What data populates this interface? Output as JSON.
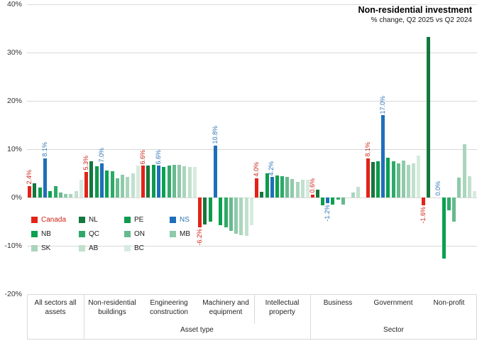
{
  "chart_data": {
    "type": "bar",
    "title": "Non-residential investment",
    "subtitle": "% change, Q2 2025 vs Q2 2024",
    "y_axis": {
      "min": -20,
      "max": 40,
      "step": 10,
      "grid": true,
      "ticks": [
        "40%",
        "30%",
        "20%",
        "10%",
        "0%",
        "-10%",
        "-20%"
      ],
      "tick_values": [
        40,
        30,
        20,
        10,
        0,
        -10,
        -20
      ]
    },
    "regions": [
      "Canada",
      "NL",
      "PE",
      "NS",
      "NB",
      "QC",
      "ON",
      "MB",
      "SK",
      "AB",
      "BC"
    ],
    "region_colors": {
      "Canada": "#e2231a",
      "NL": "#14773d",
      "PE": "#0f9a4d",
      "NS": "#1e6fba",
      "NB": "#0aa150",
      "QC": "#2fa968",
      "ON": "#67ba8e",
      "MB": "#8ecaaa",
      "SK": "#a9d5bc",
      "AB": "#c1e0ce",
      "BC": "#d7ebdf"
    },
    "label_colors": {
      "canada_text": "#cf2318",
      "ns_text": "#2e75b6"
    },
    "grid_color": "#d9d9d9",
    "groups": [
      {
        "label": "All sectors all assets",
        "values": [
          2.4,
          3.0,
          2.0,
          8.1,
          1.3,
          2.3,
          1.0,
          0.7,
          0.8,
          1.4,
          3.7
        ],
        "canada_label": "2.4%",
        "ns_label": "8.1%"
      },
      {
        "label": "Non-residential buildings",
        "values": [
          5.3,
          7.5,
          6.5,
          7.0,
          5.6,
          5.4,
          4.0,
          4.7,
          4.2,
          5.0,
          6.6
        ],
        "canada_label": "5.3%",
        "ns_label": "7.0%"
      },
      {
        "label": "Engineering construction",
        "values": [
          6.6,
          6.6,
          6.7,
          6.6,
          6.4,
          6.6,
          6.8,
          6.8,
          6.5,
          6.4,
          6.4
        ],
        "canada_label": "6.6%",
        "ns_label": "6.6%"
      },
      {
        "label": "Machinery and equipment",
        "values": [
          -6.2,
          -5.6,
          -5.0,
          10.8,
          -5.7,
          -6.2,
          -6.9,
          -7.5,
          -7.8,
          -8.0,
          -5.8
        ],
        "canada_label": "-6.2%",
        "ns_label": "10.8%"
      },
      {
        "label": "Intellectual property",
        "values": [
          4.0,
          1.2,
          5.0,
          4.2,
          4.6,
          4.4,
          4.2,
          3.9,
          3.3,
          3.7,
          3.7
        ],
        "canada_label": "4.0%",
        "ns_label": "4.2%"
      },
      {
        "label": "Business",
        "values": [
          0.6,
          1.6,
          -1.6,
          -1.2,
          -1.5,
          -0.4,
          -1.4,
          0,
          1.1,
          2.2,
          0
        ],
        "canada_label": "0.6%",
        "ns_label": "-1.2%"
      },
      {
        "label": "Government",
        "values": [
          8.1,
          7.4,
          7.5,
          17.0,
          8.3,
          7.5,
          7.0,
          7.6,
          6.8,
          7.0,
          8.7
        ],
        "canada_label": "8.1%",
        "ns_label": "17.0%"
      },
      {
        "label": "Non-profit",
        "values": [
          -1.6,
          33.2,
          0,
          0,
          -12.6,
          -2.7,
          -5.0,
          4.1,
          11.0,
          4.4,
          1.4
        ],
        "canada_label": "-1.6%",
        "ns_label": "0.0%"
      }
    ],
    "x_axis": {
      "sections": [
        {
          "label": "Asset type",
          "start": 1,
          "end": 4
        },
        {
          "label": "Sector",
          "start": 5,
          "end": 7
        }
      ]
    },
    "legend_position": "inside-left-bottom"
  }
}
